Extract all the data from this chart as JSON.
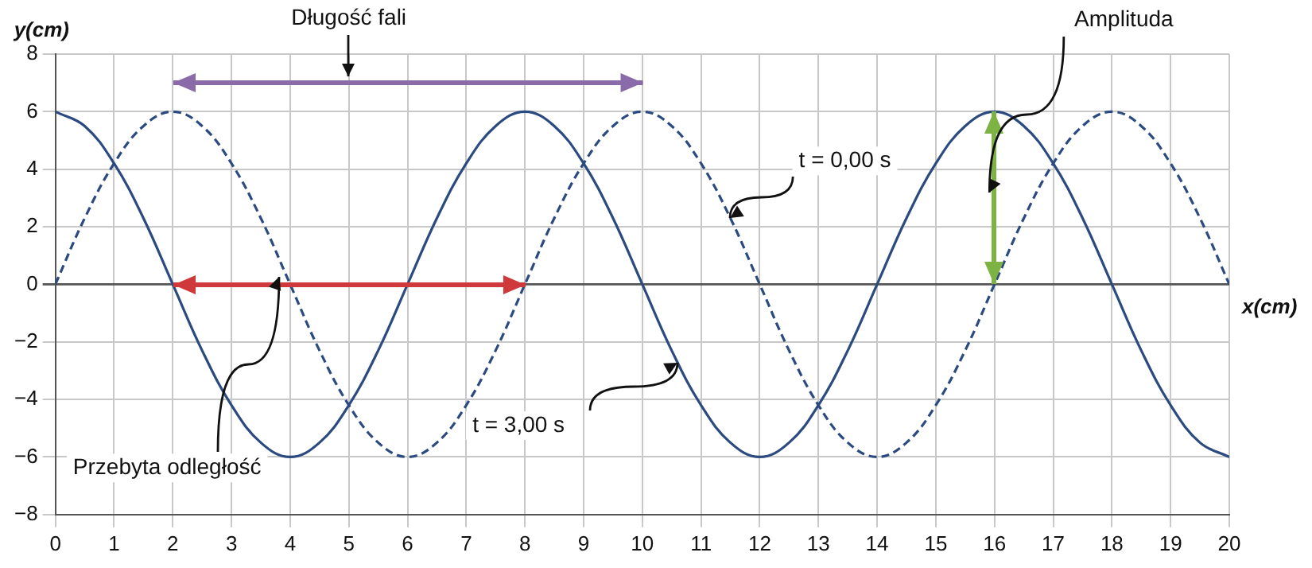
{
  "chart_data": {
    "type": "line",
    "xlabel": "x(cm)",
    "ylabel": "y(cm)",
    "xlim": [
      0,
      20
    ],
    "xticks": [
      0,
      1,
      2,
      3,
      4,
      5,
      6,
      7,
      8,
      9,
      10,
      11,
      12,
      13,
      14,
      15,
      16,
      17,
      18,
      19,
      20
    ],
    "ylim": [
      -8,
      8
    ],
    "yticks": [
      -8,
      -6,
      -4,
      -2,
      0,
      2,
      4,
      6,
      8
    ],
    "grid": true,
    "legend": false,
    "marker": "none",
    "series": [
      {
        "color": "#2b4a80",
        "line_style": "dashed",
        "x": [
          0,
          0.5,
          1,
          1.5,
          2,
          2.5,
          3,
          3.5,
          4,
          4.5,
          5,
          5.5,
          6,
          6.5,
          7,
          7.5,
          8,
          8.5,
          9,
          9.5,
          10,
          10.5,
          11,
          11.5,
          12,
          12.5,
          13,
          13.5,
          14,
          14.5,
          15,
          15.5,
          16,
          16.5,
          17,
          17.5,
          18,
          18.5,
          19,
          19.5,
          20
        ],
        "values": [
          0,
          2.3,
          4.2,
          5.5,
          6,
          5.5,
          4.2,
          2.3,
          0,
          -2.3,
          -4.2,
          -5.5,
          -6,
          -5.5,
          -4.2,
          -2.3,
          0,
          2.3,
          4.2,
          5.5,
          6,
          5.5,
          4.2,
          2.3,
          0,
          -2.3,
          -4.2,
          -5.5,
          -6,
          -5.5,
          -4.2,
          -2.3,
          0,
          2.3,
          4.2,
          5.5,
          6,
          5.5,
          4.2,
          2.3,
          0
        ]
      },
      {
        "color": "#2b4a80",
        "line_style": "solid",
        "x": [
          0,
          0.5,
          1,
          1.5,
          2,
          2.5,
          3,
          3.5,
          4,
          4.5,
          5,
          5.5,
          6,
          6.5,
          7,
          7.5,
          8,
          8.5,
          9,
          9.5,
          10,
          10.5,
          11,
          11.5,
          12,
          12.5,
          13,
          13.5,
          14,
          14.5,
          15,
          15.5,
          16,
          16.5,
          17,
          17.5,
          18,
          18.5,
          19,
          19.5,
          20
        ],
        "values": [
          6,
          5.5,
          4.2,
          2.3,
          0,
          -2.3,
          -4.2,
          -5.5,
          -6,
          -5.5,
          -4.2,
          -2.3,
          0,
          2.3,
          4.2,
          5.5,
          6,
          5.5,
          4.2,
          2.3,
          0,
          -2.3,
          -4.2,
          -5.5,
          -6,
          -5.5,
          -4.2,
          -2.3,
          0,
          2.3,
          4.2,
          5.5,
          6,
          5.5,
          4.2,
          2.3,
          0,
          -2.3,
          -4.2,
          -5.5,
          -6
        ]
      }
    ],
    "annotations": [
      "Długość fali",
      {
        "text": "t = 0,00 s",
        "x": 11.5,
        "y": 2.3
      },
      {
        "text": "t = 3,00 s",
        "x": 10.6,
        "y": -2.7
      },
      "Przebyta odległość",
      "Amplituda"
    ]
  }
}
